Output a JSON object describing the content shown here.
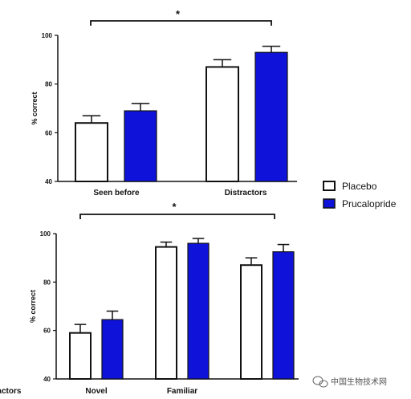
{
  "chart_data": [
    {
      "type": "bar",
      "ylabel": "% correct",
      "ylim": [
        40,
        100
      ],
      "yticks": [
        "40",
        "60",
        "80",
        "100"
      ],
      "categories": [
        "Seen before",
        "Distractors"
      ],
      "series": [
        {
          "name": "Placebo",
          "values": [
            64,
            87
          ],
          "errors": [
            3,
            3
          ]
        },
        {
          "name": "Prucalopride",
          "values": [
            69,
            93
          ],
          "errors": [
            3,
            2.5
          ]
        }
      ],
      "annotation": "*"
    },
    {
      "type": "bar",
      "ylabel": "% correct",
      "ylim": [
        40,
        100
      ],
      "yticks": [
        "40",
        "60",
        "80",
        "100"
      ],
      "categories": [
        "Novel",
        "Familiar",
        "Distractors"
      ],
      "series": [
        {
          "name": "Placebo",
          "values": [
            59,
            94.5,
            87
          ],
          "errors": [
            3.5,
            2,
            3
          ]
        },
        {
          "name": "Prucalopride",
          "values": [
            64.5,
            96,
            92.5
          ],
          "errors": [
            3.5,
            2,
            3
          ]
        }
      ],
      "annotation": "*"
    }
  ],
  "legend": {
    "position": "right",
    "items": [
      {
        "label": "Placebo",
        "fill": "#ffffff"
      },
      {
        "label": "Prucalopride",
        "fill": "#0f13d9"
      }
    ]
  },
  "colors": {
    "placebo": "#ffffff",
    "prucalopride": "#0f13d9",
    "axis": "#111111"
  },
  "watermark": {
    "icon": "wechat-icon",
    "text": "中国生物技术网"
  }
}
